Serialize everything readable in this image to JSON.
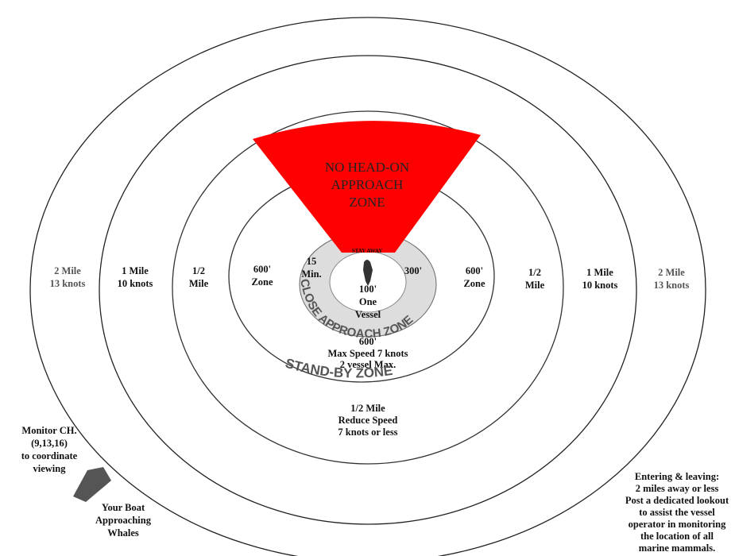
{
  "wedge": {
    "lines": [
      "NO HEAD-ON",
      "APPROACH",
      "ZONE"
    ]
  },
  "zones": {
    "two_mile_left": [
      "2 Mile",
      "13 knots"
    ],
    "one_mile_left": [
      "1 Mile",
      "10 knots"
    ],
    "half_mile_left": [
      "1/2",
      "Mile"
    ],
    "six_hundred_left": [
      "600'",
      "Zone"
    ],
    "fifteen_min": [
      "15",
      "Min."
    ],
    "stay_away": "STAY AWAY",
    "three_hundred": "300'",
    "hundred": "100'",
    "one_vessel": [
      "One",
      "Vessel"
    ],
    "close_approach": "CLOSE APPROACH ZONE",
    "six_hundred_right": [
      "600'",
      "Zone"
    ],
    "half_mile_right": [
      "1/2",
      "Mile"
    ],
    "one_mile_right": [
      "1 Mile",
      "10 knots"
    ],
    "two_mile_right": [
      "2 Mile",
      "13 knots"
    ],
    "stand_by_details": [
      "600'",
      "Max Speed 7 knots",
      "2 vessel Max."
    ],
    "stand_by": "STAND-BY ZONE",
    "half_mile_bottom": [
      "1/2 Mile",
      "Reduce Speed",
      "7 knots or less"
    ]
  },
  "notes": {
    "monitor": [
      "Monitor CH.",
      "(9,13,16)",
      "to coordinate",
      "viewing"
    ],
    "boat": [
      "Your Boat",
      "Approaching",
      "Whales"
    ],
    "entering": [
      "Entering & leaving:",
      "2 miles away or less",
      "Post a dedicated lookout",
      "to assist the vessel",
      "operator in monitoring",
      "the location of all",
      "marine mammals."
    ]
  }
}
